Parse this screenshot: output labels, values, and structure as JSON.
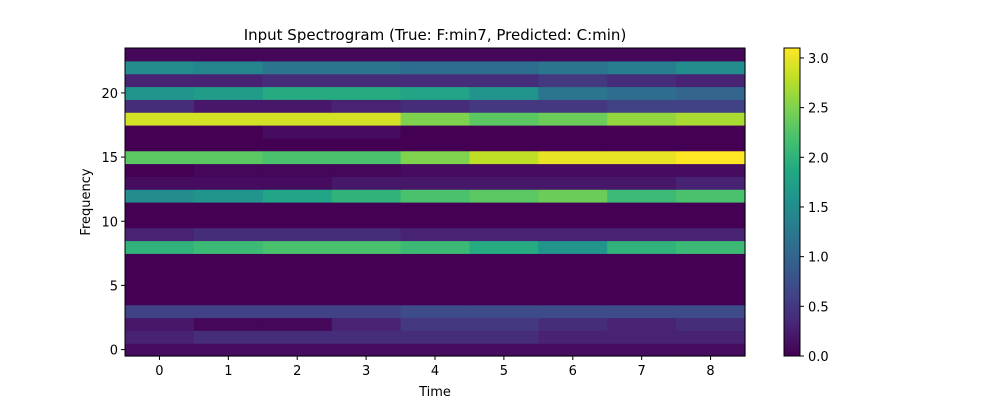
{
  "chart_data": {
    "type": "heatmap",
    "title": "Input Spectrogram (True: F:min7, Predicted: C:min)",
    "xlabel": "Time",
    "ylabel": "Frequency",
    "x": [
      0,
      1,
      2,
      3,
      4,
      5,
      6,
      7,
      8
    ],
    "y": [
      0,
      1,
      2,
      3,
      4,
      5,
      6,
      7,
      8,
      9,
      10,
      11,
      12,
      13,
      14,
      15,
      16,
      17,
      18,
      19,
      20,
      21,
      22,
      23
    ],
    "xticks": [
      "0",
      "1",
      "2",
      "3",
      "4",
      "5",
      "6",
      "7",
      "8"
    ],
    "yticks": [
      "0",
      "5",
      "10",
      "15",
      "20"
    ],
    "colorbar_ticks": [
      "0.0",
      "0.5",
      "1.0",
      "1.5",
      "2.0",
      "2.5",
      "3.0"
    ],
    "colormap": "viridis",
    "vmin": 0.0,
    "vmax": 3.1,
    "values": [
      [
        0.1,
        0.1,
        0.1,
        0.1,
        0.1,
        0.1,
        0.1,
        0.1,
        0.1
      ],
      [
        0.3,
        0.4,
        0.4,
        0.4,
        0.4,
        0.4,
        0.3,
        0.3,
        0.3
      ],
      [
        0.2,
        0.05,
        0.05,
        0.3,
        0.5,
        0.5,
        0.4,
        0.3,
        0.4
      ],
      [
        0.6,
        0.6,
        0.6,
        0.6,
        0.7,
        0.7,
        0.7,
        0.7,
        0.7
      ],
      [
        0.0,
        0.0,
        0.0,
        0.0,
        0.0,
        0.0,
        0.0,
        0.0,
        0.0
      ],
      [
        0.0,
        0.0,
        0.0,
        0.0,
        0.0,
        0.0,
        0.0,
        0.0,
        0.0
      ],
      [
        0.0,
        0.0,
        0.0,
        0.0,
        0.0,
        0.0,
        0.0,
        0.0,
        0.0
      ],
      [
        0.0,
        0.0,
        0.0,
        0.0,
        0.0,
        0.0,
        0.0,
        0.0,
        0.0
      ],
      [
        2.0,
        2.1,
        2.2,
        2.2,
        2.1,
        1.9,
        1.6,
        2.0,
        2.1
      ],
      [
        0.3,
        0.4,
        0.4,
        0.4,
        0.3,
        0.3,
        0.3,
        0.3,
        0.3
      ],
      [
        0.0,
        0.0,
        0.0,
        0.0,
        0.0,
        0.0,
        0.0,
        0.0,
        0.0
      ],
      [
        0.0,
        0.0,
        0.0,
        0.0,
        0.0,
        0.0,
        0.0,
        0.0,
        0.0
      ],
      [
        1.5,
        1.6,
        1.8,
        2.0,
        2.2,
        2.3,
        2.4,
        2.1,
        2.2
      ],
      [
        0.1,
        0.1,
        0.1,
        0.2,
        0.2,
        0.2,
        0.2,
        0.2,
        0.3
      ],
      [
        0.0,
        0.05,
        0.05,
        0.05,
        0.1,
        0.1,
        0.1,
        0.1,
        0.1
      ],
      [
        2.3,
        2.3,
        2.2,
        2.2,
        2.5,
        2.8,
        3.0,
        3.0,
        3.1
      ],
      [
        0.0,
        0.0,
        0.0,
        0.0,
        0.0,
        0.0,
        0.0,
        0.0,
        0.0
      ],
      [
        0.0,
        0.0,
        0.1,
        0.1,
        0.0,
        0.0,
        0.0,
        0.0,
        0.0
      ],
      [
        2.9,
        2.9,
        2.9,
        2.9,
        2.5,
        2.3,
        2.4,
        2.6,
        2.7
      ],
      [
        0.4,
        0.2,
        0.2,
        0.3,
        0.4,
        0.5,
        0.5,
        0.6,
        0.6
      ],
      [
        1.6,
        1.7,
        1.9,
        1.9,
        1.8,
        1.6,
        1.2,
        1.1,
        1.0
      ],
      [
        0.3,
        0.3,
        0.4,
        0.4,
        0.4,
        0.4,
        0.5,
        0.4,
        0.3
      ],
      [
        1.5,
        1.4,
        1.2,
        1.2,
        1.1,
        1.1,
        1.2,
        1.3,
        1.5
      ],
      [
        0.05,
        0.05,
        0.05,
        0.05,
        0.05,
        0.05,
        0.05,
        0.05,
        0.05
      ]
    ]
  }
}
